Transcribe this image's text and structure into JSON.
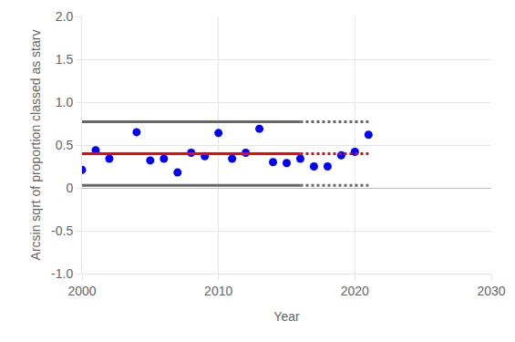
{
  "chart_data": {
    "type": "scatter",
    "x_label": "Year",
    "y_label": "Arcsin sqrt of proportion classed as starv",
    "xlim": [
      2000,
      2030
    ],
    "xticks": [
      2000,
      2010,
      2020,
      2030
    ],
    "ylim": [
      -1.0,
      2.0
    ],
    "yticks": [
      {
        "value": -1.0,
        "label": "-1.0"
      },
      {
        "value": -0.5,
        "label": "-0.5"
      },
      0,
      {
        "value": 0.5,
        "label": "0.5"
      },
      {
        "value": 1.0,
        "label": "1.0"
      },
      {
        "value": 1.5,
        "label": "1.5"
      },
      {
        "value": 2.0,
        "label": "2.0"
      }
    ],
    "grid": true,
    "series": [
      {
        "type": "scatter",
        "color": "#0000ff",
        "marker": "circle",
        "x": [
          2000,
          2001,
          2002,
          2004,
          2005,
          2006,
          2007,
          2008,
          2009,
          2010,
          2011,
          2012,
          2013,
          2014,
          2015,
          2016,
          2017,
          2018,
          2019,
          2020,
          2021
        ],
        "values": [
          0.21,
          0.44,
          0.34,
          0.65,
          0.32,
          0.34,
          0.18,
          0.41,
          0.37,
          0.64,
          0.34,
          0.41,
          0.69,
          0.3,
          0.29,
          0.34,
          0.25,
          0.25,
          0.38,
          0.42,
          0.62
        ]
      },
      {
        "type": "line",
        "color": "#ff0000",
        "line_style": "solid",
        "x": [
          2000,
          2016
        ],
        "values": [
          0.4,
          0.4
        ]
      },
      {
        "type": "line",
        "color": "#ff0000",
        "line_style": "dotted",
        "x": [
          2016,
          2021
        ],
        "values": [
          0.4,
          0.4
        ]
      },
      {
        "type": "line",
        "color": "#666666",
        "line_style": "solid",
        "x": [
          2000,
          2016
        ],
        "values": [
          0.77,
          0.77
        ]
      },
      {
        "type": "line",
        "color": "#666666",
        "line_style": "dotted",
        "x": [
          2016,
          2021
        ],
        "values": [
          0.77,
          0.77
        ]
      },
      {
        "type": "line",
        "color": "#666666",
        "line_style": "solid",
        "x": [
          2000,
          2016
        ],
        "values": [
          0.03,
          0.03
        ]
      },
      {
        "type": "line",
        "color": "#666666",
        "line_style": "dotted",
        "x": [
          2016,
          2021
        ],
        "values": [
          0.03,
          0.03
        ]
      }
    ]
  }
}
